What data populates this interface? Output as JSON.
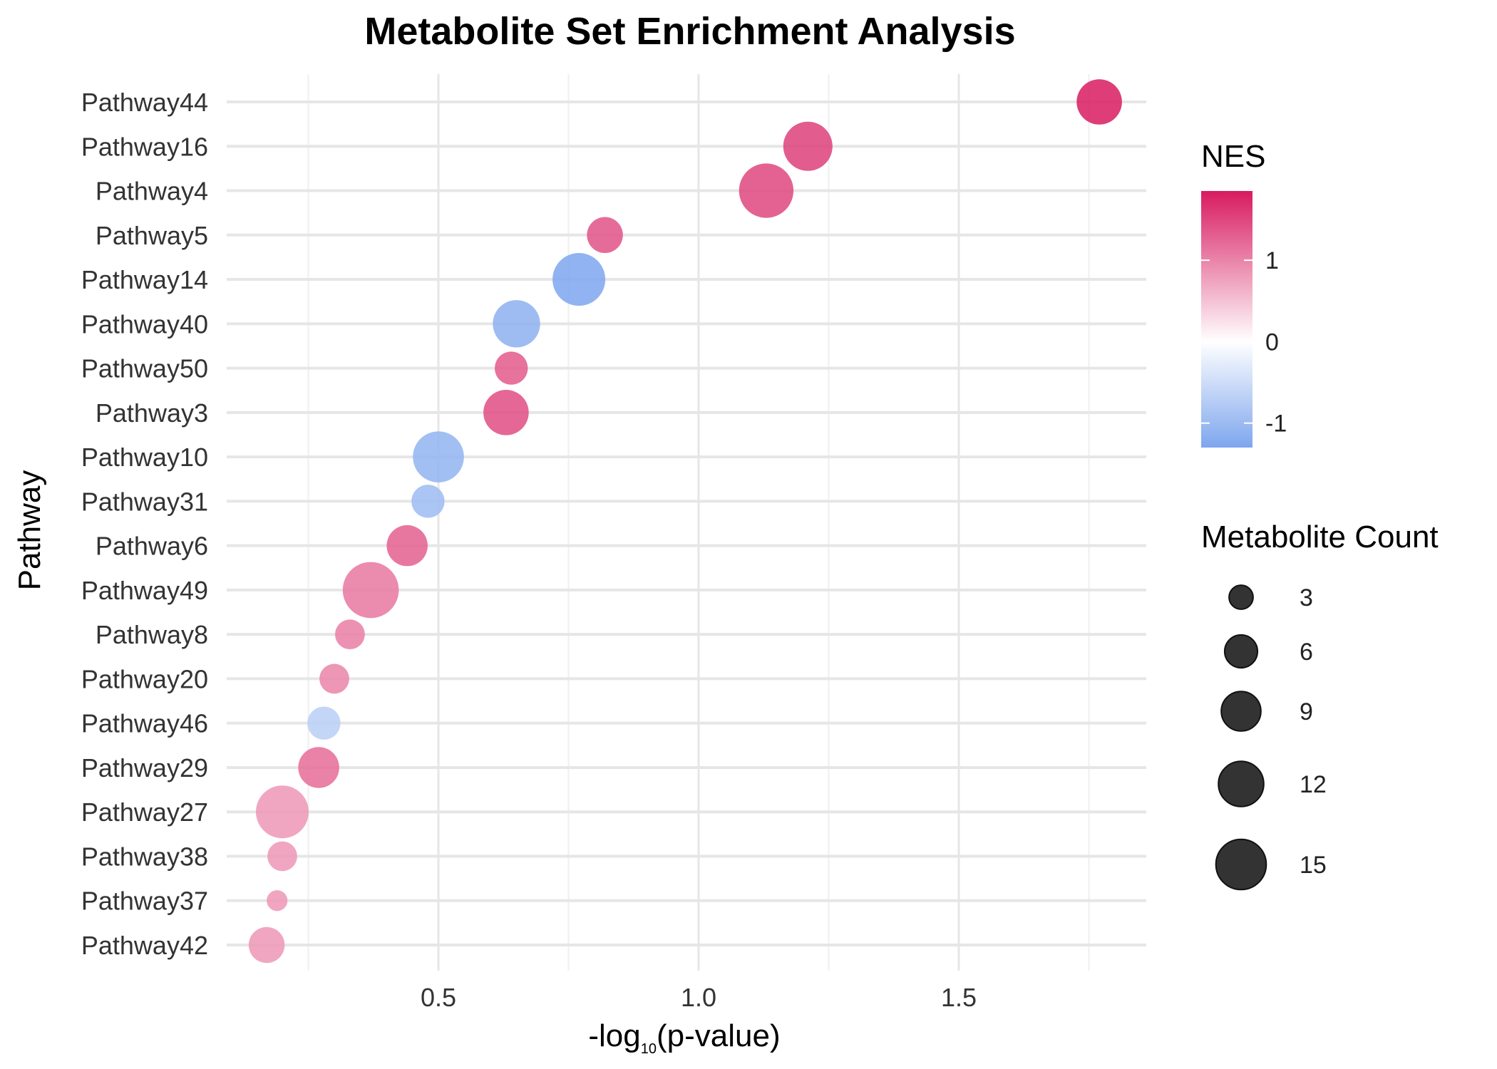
{
  "chart_data": {
    "type": "scatter",
    "title": "Metabolite Set Enrichment Analysis",
    "xlabel_pre": "-log",
    "xlabel_sub": "10",
    "xlabel_post": "(p-value)",
    "ylabel": "Pathway",
    "xlim": [
      0.18,
      1.85
    ],
    "xticks": [
      "0.5",
      "1.0",
      "1.5"
    ],
    "xtick_values": [
      0.5,
      1.0,
      1.5
    ],
    "grid": true,
    "categories": [
      "Pathway44",
      "Pathway16",
      "Pathway4",
      "Pathway5",
      "Pathway14",
      "Pathway40",
      "Pathway50",
      "Pathway3",
      "Pathway10",
      "Pathway31",
      "Pathway6",
      "Pathway49",
      "Pathway8",
      "Pathway20",
      "Pathway46",
      "Pathway29",
      "Pathway27",
      "Pathway38",
      "Pathway37",
      "Pathway42"
    ],
    "points": [
      {
        "pathway": "Pathway44",
        "x": 1.77,
        "nes": 1.85,
        "count": 9
      },
      {
        "pathway": "Pathway16",
        "x": 1.21,
        "nes": 1.55,
        "count": 11
      },
      {
        "pathway": "Pathway4",
        "x": 1.13,
        "nes": 1.5,
        "count": 14
      },
      {
        "pathway": "Pathway5",
        "x": 0.82,
        "nes": 1.4,
        "count": 5
      },
      {
        "pathway": "Pathway14",
        "x": 0.77,
        "nes": -1.3,
        "count": 13
      },
      {
        "pathway": "Pathway40",
        "x": 0.65,
        "nes": -1.15,
        "count": 10
      },
      {
        "pathway": "Pathway50",
        "x": 0.64,
        "nes": 1.35,
        "count": 4
      },
      {
        "pathway": "Pathway3",
        "x": 0.63,
        "nes": 1.45,
        "count": 9
      },
      {
        "pathway": "Pathway10",
        "x": 0.5,
        "nes": -1.1,
        "count": 12
      },
      {
        "pathway": "Pathway31",
        "x": 0.48,
        "nes": -1.0,
        "count": 4
      },
      {
        "pathway": "Pathway6",
        "x": 0.44,
        "nes": 1.3,
        "count": 7
      },
      {
        "pathway": "Pathway49",
        "x": 0.37,
        "nes": 1.1,
        "count": 15
      },
      {
        "pathway": "Pathway8",
        "x": 0.33,
        "nes": 1.05,
        "count": 3
      },
      {
        "pathway": "Pathway20",
        "x": 0.3,
        "nes": 1.0,
        "count": 3
      },
      {
        "pathway": "Pathway46",
        "x": 0.28,
        "nes": -0.7,
        "count": 4
      },
      {
        "pathway": "Pathway29",
        "x": 0.27,
        "nes": 1.2,
        "count": 7
      },
      {
        "pathway": "Pathway27",
        "x": 0.2,
        "nes": 0.85,
        "count": 13
      },
      {
        "pathway": "Pathway38",
        "x": 0.2,
        "nes": 0.85,
        "count": 3
      },
      {
        "pathway": "Pathway37",
        "x": 0.19,
        "nes": 0.85,
        "count": 1
      },
      {
        "pathway": "Pathway42",
        "x": 0.17,
        "nes": 0.85,
        "count": 5
      }
    ],
    "color_legend": {
      "title": "NES",
      "min": -1.3,
      "max": 1.85,
      "ticks": [
        "1",
        "0",
        "-1"
      ],
      "tick_values": [
        1,
        0,
        -1
      ],
      "low_color": "#7ea6ee",
      "mid_color": "#ffffff",
      "high_color": "#d81b60"
    },
    "size_legend": {
      "title": "Metabolite Count",
      "labels": [
        "3",
        "6",
        "9",
        "12",
        "15"
      ],
      "values": [
        3,
        6,
        9,
        12,
        15
      ],
      "color": "#333333"
    },
    "legend_position": "right"
  }
}
